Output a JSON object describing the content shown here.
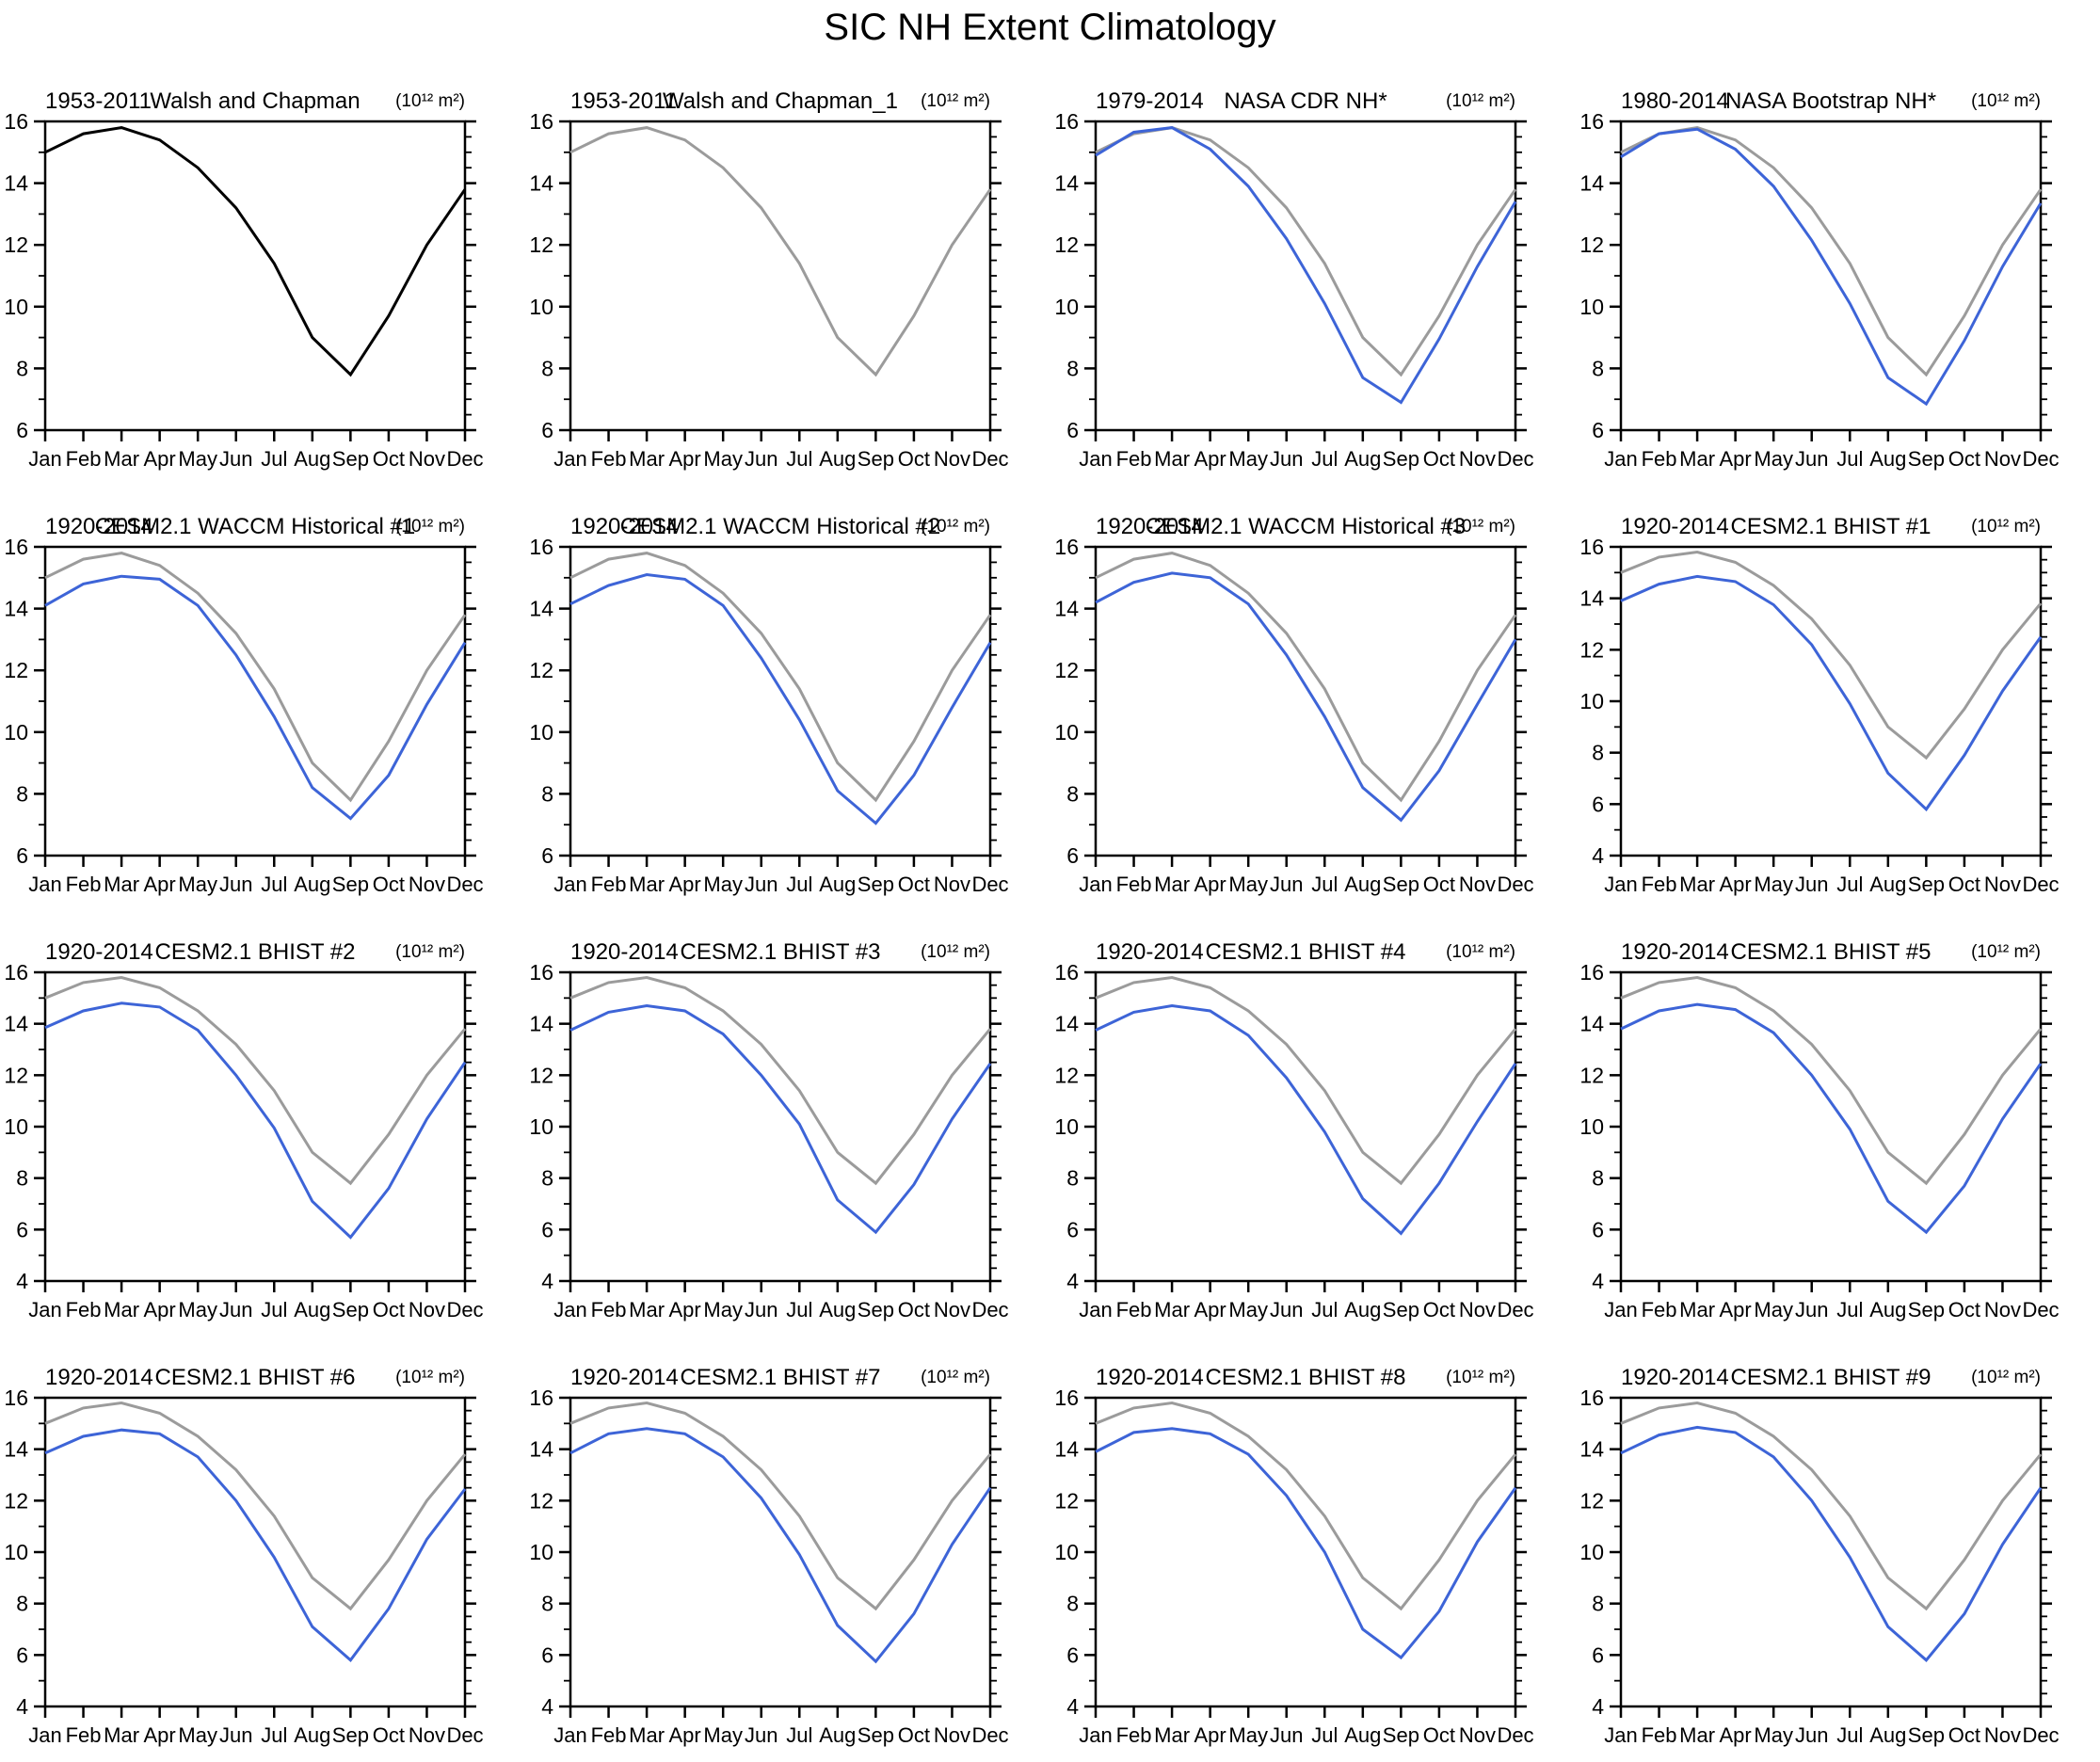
{
  "page_title": "SIC NH Extent Climatology",
  "months": [
    "Jan",
    "Feb",
    "Mar",
    "Apr",
    "May",
    "Jun",
    "Jul",
    "Aug",
    "Sep",
    "Oct",
    "Nov",
    "Dec"
  ],
  "colors": {
    "observed": "#000000",
    "reference": "#9b9b9b",
    "model": "#3d64d7",
    "axis": "#000000"
  },
  "chart_data": [
    {
      "type": "line",
      "period": "1953-2011",
      "name": "Walsh and Chapman",
      "units": "(10¹² m²)",
      "ylim": [
        6,
        16
      ],
      "ytick_step": 2,
      "grid": false,
      "series": [
        {
          "name": "Walsh and Chapman",
          "color": "observed",
          "values": [
            15.0,
            15.6,
            15.8,
            15.4,
            14.5,
            13.2,
            11.4,
            9.0,
            7.8,
            9.7,
            12.0,
            13.8
          ]
        }
      ]
    },
    {
      "type": "line",
      "period": "1953-2011",
      "name": "Walsh and Chapman_1",
      "units": "(10¹² m²)",
      "ylim": [
        6,
        16
      ],
      "ytick_step": 2,
      "grid": false,
      "series": [
        {
          "name": "Walsh and Chapman_1",
          "color": "reference",
          "values": [
            15.0,
            15.6,
            15.8,
            15.4,
            14.5,
            13.2,
            11.4,
            9.0,
            7.8,
            9.7,
            12.0,
            13.8
          ]
        }
      ]
    },
    {
      "type": "line",
      "period": "1979-2014",
      "name": "NASA CDR NH*",
      "units": "(10¹² m²)",
      "ylim": [
        6,
        16
      ],
      "ytick_step": 2,
      "grid": false,
      "series": [
        {
          "name": "Walsh and Chapman",
          "color": "reference",
          "values": [
            15.0,
            15.6,
            15.8,
            15.4,
            14.5,
            13.2,
            11.4,
            9.0,
            7.8,
            9.7,
            12.0,
            13.8
          ]
        },
        {
          "name": "NASA CDR NH*",
          "color": "model",
          "values": [
            14.9,
            15.65,
            15.8,
            15.1,
            13.9,
            12.2,
            10.1,
            7.7,
            6.9,
            8.95,
            11.3,
            13.4
          ]
        }
      ]
    },
    {
      "type": "line",
      "period": "1980-2014",
      "name": "NASA Bootstrap NH*",
      "units": "(10¹² m²)",
      "ylim": [
        6,
        16
      ],
      "ytick_step": 2,
      "grid": false,
      "series": [
        {
          "name": "Walsh and Chapman",
          "color": "reference",
          "values": [
            15.0,
            15.6,
            15.8,
            15.4,
            14.5,
            13.2,
            11.4,
            9.0,
            7.8,
            9.7,
            12.0,
            13.8
          ]
        },
        {
          "name": "NASA Bootstrap NH*",
          "color": "model",
          "values": [
            14.85,
            15.6,
            15.75,
            15.1,
            13.9,
            12.15,
            10.1,
            7.7,
            6.85,
            8.9,
            11.3,
            13.35
          ]
        }
      ]
    },
    {
      "type": "line",
      "period": "1920-2014",
      "name": "CESM2.1 WACCM Historical #1",
      "units": "(10¹² m²)",
      "ylim": [
        6,
        16
      ],
      "ytick_step": 2,
      "grid": false,
      "series": [
        {
          "name": "Walsh and Chapman",
          "color": "reference",
          "values": [
            15.0,
            15.6,
            15.8,
            15.4,
            14.5,
            13.2,
            11.4,
            9.0,
            7.8,
            9.7,
            12.0,
            13.8
          ]
        },
        {
          "name": "CESM2.1 WACCM Historical #1",
          "color": "model",
          "values": [
            14.1,
            14.8,
            15.05,
            14.95,
            14.1,
            12.5,
            10.5,
            8.2,
            7.2,
            8.6,
            10.9,
            12.9
          ]
        }
      ]
    },
    {
      "type": "line",
      "period": "1920-2014",
      "name": "CESM2.1 WACCM Historical #2",
      "units": "(10¹² m²)",
      "ylim": [
        6,
        16
      ],
      "ytick_step": 2,
      "grid": false,
      "series": [
        {
          "name": "Walsh and Chapman",
          "color": "reference",
          "values": [
            15.0,
            15.6,
            15.8,
            15.4,
            14.5,
            13.2,
            11.4,
            9.0,
            7.8,
            9.7,
            12.0,
            13.8
          ]
        },
        {
          "name": "CESM2.1 WACCM Historical #2",
          "color": "model",
          "values": [
            14.15,
            14.75,
            15.1,
            14.95,
            14.1,
            12.4,
            10.4,
            8.1,
            7.05,
            8.6,
            10.8,
            12.9
          ]
        }
      ]
    },
    {
      "type": "line",
      "period": "1920-2014",
      "name": "CESM2.1 WACCM Historical #3",
      "units": "(10¹² m²)",
      "ylim": [
        6,
        16
      ],
      "ytick_step": 2,
      "grid": false,
      "series": [
        {
          "name": "Walsh and Chapman",
          "color": "reference",
          "values": [
            15.0,
            15.6,
            15.8,
            15.4,
            14.5,
            13.2,
            11.4,
            9.0,
            7.8,
            9.7,
            12.0,
            13.8
          ]
        },
        {
          "name": "CESM2.1 WACCM Historical #3",
          "color": "model",
          "values": [
            14.2,
            14.85,
            15.15,
            15.0,
            14.15,
            12.5,
            10.5,
            8.2,
            7.15,
            8.75,
            10.9,
            13.0
          ]
        }
      ]
    },
    {
      "type": "line",
      "period": "1920-2014",
      "name": "CESM2.1 BHIST #1",
      "units": "(10¹² m²)",
      "ylim": [
        4,
        16
      ],
      "ytick_step": 2,
      "grid": false,
      "series": [
        {
          "name": "Walsh and Chapman",
          "color": "reference",
          "values": [
            15.0,
            15.6,
            15.8,
            15.4,
            14.5,
            13.2,
            11.4,
            9.0,
            7.8,
            9.7,
            12.0,
            13.8
          ]
        },
        {
          "name": "CESM2.1 BHIST #1",
          "color": "model",
          "values": [
            13.9,
            14.55,
            14.85,
            14.65,
            13.75,
            12.2,
            9.9,
            7.2,
            5.8,
            7.9,
            10.4,
            12.5
          ]
        }
      ]
    },
    {
      "type": "line",
      "period": "1920-2014",
      "name": "CESM2.1 BHIST #2",
      "units": "(10¹² m²)",
      "ylim": [
        4,
        16
      ],
      "ytick_step": 2,
      "grid": false,
      "series": [
        {
          "name": "Walsh and Chapman",
          "color": "reference",
          "values": [
            15.0,
            15.6,
            15.8,
            15.4,
            14.5,
            13.2,
            11.4,
            9.0,
            7.8,
            9.7,
            12.0,
            13.8
          ]
        },
        {
          "name": "CESM2.1 BHIST #2",
          "color": "model",
          "values": [
            13.85,
            14.5,
            14.8,
            14.65,
            13.75,
            12.0,
            9.95,
            7.1,
            5.7,
            7.6,
            10.3,
            12.5
          ]
        }
      ]
    },
    {
      "type": "line",
      "period": "1920-2014",
      "name": "CESM2.1 BHIST #3",
      "units": "(10¹² m²)",
      "ylim": [
        4,
        16
      ],
      "ytick_step": 2,
      "grid": false,
      "series": [
        {
          "name": "Walsh and Chapman",
          "color": "reference",
          "values": [
            15.0,
            15.6,
            15.8,
            15.4,
            14.5,
            13.2,
            11.4,
            9.0,
            7.8,
            9.7,
            12.0,
            13.8
          ]
        },
        {
          "name": "CESM2.1 BHIST #3",
          "color": "model",
          "values": [
            13.75,
            14.45,
            14.7,
            14.5,
            13.6,
            12.0,
            10.1,
            7.15,
            5.9,
            7.75,
            10.3,
            12.45
          ]
        }
      ]
    },
    {
      "type": "line",
      "period": "1920-2014",
      "name": "CESM2.1 BHIST #4",
      "units": "(10¹² m²)",
      "ylim": [
        4,
        16
      ],
      "ytick_step": 2,
      "grid": false,
      "series": [
        {
          "name": "Walsh and Chapman",
          "color": "reference",
          "values": [
            15.0,
            15.6,
            15.8,
            15.4,
            14.5,
            13.2,
            11.4,
            9.0,
            7.8,
            9.7,
            12.0,
            13.8
          ]
        },
        {
          "name": "CESM2.1 BHIST #4",
          "color": "model",
          "values": [
            13.75,
            14.45,
            14.7,
            14.5,
            13.55,
            11.9,
            9.8,
            7.2,
            5.85,
            7.8,
            10.2,
            12.45
          ]
        }
      ]
    },
    {
      "type": "line",
      "period": "1920-2014",
      "name": "CESM2.1 BHIST #5",
      "units": "(10¹² m²)",
      "ylim": [
        4,
        16
      ],
      "ytick_step": 2,
      "grid": false,
      "series": [
        {
          "name": "Walsh and Chapman",
          "color": "reference",
          "values": [
            15.0,
            15.6,
            15.8,
            15.4,
            14.5,
            13.2,
            11.4,
            9.0,
            7.8,
            9.7,
            12.0,
            13.8
          ]
        },
        {
          "name": "CESM2.1 BHIST #5",
          "color": "model",
          "values": [
            13.8,
            14.5,
            14.75,
            14.55,
            13.65,
            12.0,
            9.9,
            7.1,
            5.9,
            7.7,
            10.3,
            12.45
          ]
        }
      ]
    },
    {
      "type": "line",
      "period": "1920-2014",
      "name": "CESM2.1 BHIST #6",
      "units": "(10¹² m²)",
      "ylim": [
        4,
        16
      ],
      "ytick_step": 2,
      "grid": false,
      "series": [
        {
          "name": "Walsh and Chapman",
          "color": "reference",
          "values": [
            15.0,
            15.6,
            15.8,
            15.4,
            14.5,
            13.2,
            11.4,
            9.0,
            7.8,
            9.7,
            12.0,
            13.8
          ]
        },
        {
          "name": "CESM2.1 BHIST #6",
          "color": "model",
          "values": [
            13.85,
            14.5,
            14.75,
            14.6,
            13.7,
            12.0,
            9.8,
            7.1,
            5.8,
            7.8,
            10.5,
            12.45
          ]
        }
      ]
    },
    {
      "type": "line",
      "period": "1920-2014",
      "name": "CESM2.1 BHIST #7",
      "units": "(10¹² m²)",
      "ylim": [
        4,
        16
      ],
      "ytick_step": 2,
      "grid": false,
      "series": [
        {
          "name": "Walsh and Chapman",
          "color": "reference",
          "values": [
            15.0,
            15.6,
            15.8,
            15.4,
            14.5,
            13.2,
            11.4,
            9.0,
            7.8,
            9.7,
            12.0,
            13.8
          ]
        },
        {
          "name": "CESM2.1 BHIST #7",
          "color": "model",
          "values": [
            13.85,
            14.6,
            14.8,
            14.6,
            13.7,
            12.1,
            9.9,
            7.15,
            5.75,
            7.6,
            10.3,
            12.5
          ]
        }
      ]
    },
    {
      "type": "line",
      "period": "1920-2014",
      "name": "CESM2.1 BHIST #8",
      "units": "(10¹² m²)",
      "ylim": [
        4,
        16
      ],
      "ytick_step": 2,
      "grid": false,
      "series": [
        {
          "name": "Walsh and Chapman",
          "color": "reference",
          "values": [
            15.0,
            15.6,
            15.8,
            15.4,
            14.5,
            13.2,
            11.4,
            9.0,
            7.8,
            9.7,
            12.0,
            13.8
          ]
        },
        {
          "name": "CESM2.1 BHIST #8",
          "color": "model",
          "values": [
            13.9,
            14.65,
            14.8,
            14.6,
            13.8,
            12.2,
            10.0,
            7.0,
            5.9,
            7.7,
            10.4,
            12.5
          ]
        }
      ]
    },
    {
      "type": "line",
      "period": "1920-2014",
      "name": "CESM2.1 BHIST #9",
      "units": "(10¹² m²)",
      "ylim": [
        4,
        16
      ],
      "ytick_step": 2,
      "grid": false,
      "series": [
        {
          "name": "Walsh and Chapman",
          "color": "reference",
          "values": [
            15.0,
            15.6,
            15.8,
            15.4,
            14.5,
            13.2,
            11.4,
            9.0,
            7.8,
            9.7,
            12.0,
            13.8
          ]
        },
        {
          "name": "CESM2.1 BHIST #9",
          "color": "model",
          "values": [
            13.85,
            14.55,
            14.85,
            14.65,
            13.7,
            12.0,
            9.8,
            7.1,
            5.8,
            7.6,
            10.3,
            12.5
          ]
        }
      ]
    }
  ]
}
